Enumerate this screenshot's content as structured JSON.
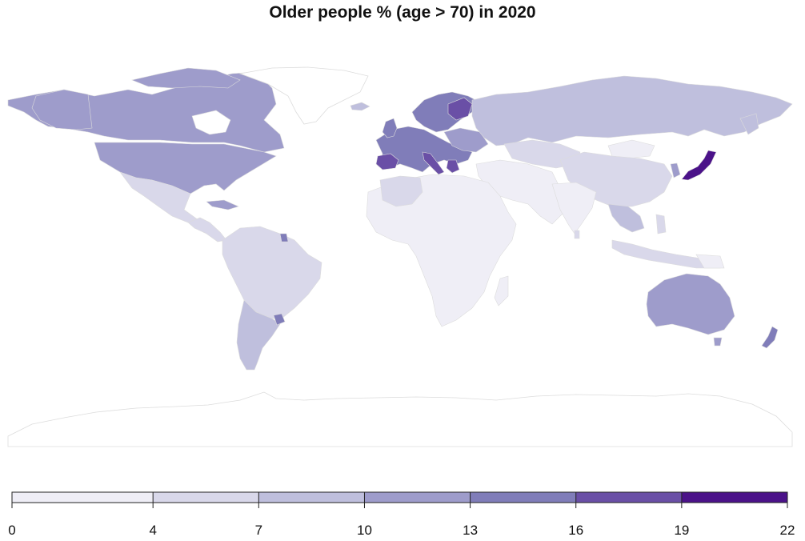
{
  "title": "Older people % (age > 70) in 2020",
  "legend": {
    "breaks": [
      0,
      4,
      7,
      10,
      13,
      16,
      19,
      22
    ],
    "labels": [
      "0",
      "4",
      "7",
      "10",
      "13",
      "16",
      "19",
      "22"
    ],
    "colors": [
      "#efeef6",
      "#d9d8ea",
      "#bfbfdd",
      "#9e9ccb",
      "#807db9",
      "#6a4fa6",
      "#4b1289"
    ]
  },
  "colors": {
    "border": "#dcdcdc",
    "antarctica": "#ffffff",
    "greenland": "#ffffff"
  }
}
